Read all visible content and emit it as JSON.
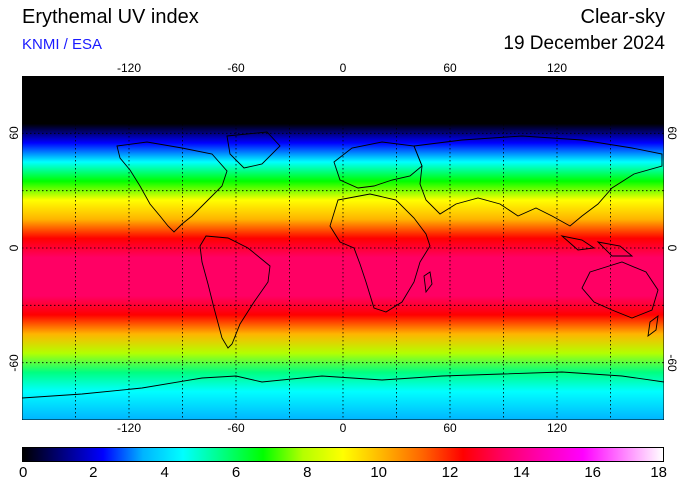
{
  "header": {
    "title": "Erythemal UV index",
    "credit": "KNMI / ESA",
    "mode": "Clear-sky",
    "date": "19 December 2024"
  },
  "map": {
    "projection": "equirectangular",
    "lon_range": [
      -180,
      180
    ],
    "lat_range": [
      -90,
      90
    ],
    "lon_ticks": [
      "-120",
      "-60",
      "0",
      "60",
      "120"
    ],
    "lat_ticks": [
      "60",
      "0",
      "-60"
    ],
    "grid_style": "dotted",
    "grid_lon_step": 30,
    "grid_lat_step": 30
  },
  "colorbar": {
    "labels": [
      "0",
      "2",
      "4",
      "6",
      "8",
      "10",
      "12",
      "14",
      "16",
      "18"
    ],
    "min": 0,
    "max": 18,
    "stops": [
      "#000000",
      "#000080",
      "#0000ff",
      "#00b4ff",
      "#00ffff",
      "#00ff80",
      "#00ff00",
      "#b4ff00",
      "#ffff00",
      "#ffb400",
      "#ff6400",
      "#ff0000",
      "#ff0064",
      "#ff00b4",
      "#ff00ff",
      "#ff80ff",
      "#ffffff"
    ]
  },
  "chart_data": {
    "type": "heatmap",
    "variable": "Erythemal UV index",
    "condition": "Clear-sky",
    "date": "19 December 2024",
    "x": [
      -180,
      180
    ],
    "y": [
      -90,
      90
    ],
    "latitude_profile": {
      "lat": [
        90,
        75,
        65,
        55,
        45,
        35,
        25,
        15,
        5,
        -5,
        -15,
        -25,
        -35,
        -45,
        -55,
        -65,
        -75,
        -90
      ],
      "uv_index": [
        0,
        0,
        0.5,
        2,
        4,
        6.5,
        8.5,
        10.5,
        12,
        13,
        13.5,
        13.5,
        12.5,
        10.5,
        7.5,
        6,
        5,
        3
      ]
    },
    "scale_min": 0,
    "scale_max": 18
  }
}
